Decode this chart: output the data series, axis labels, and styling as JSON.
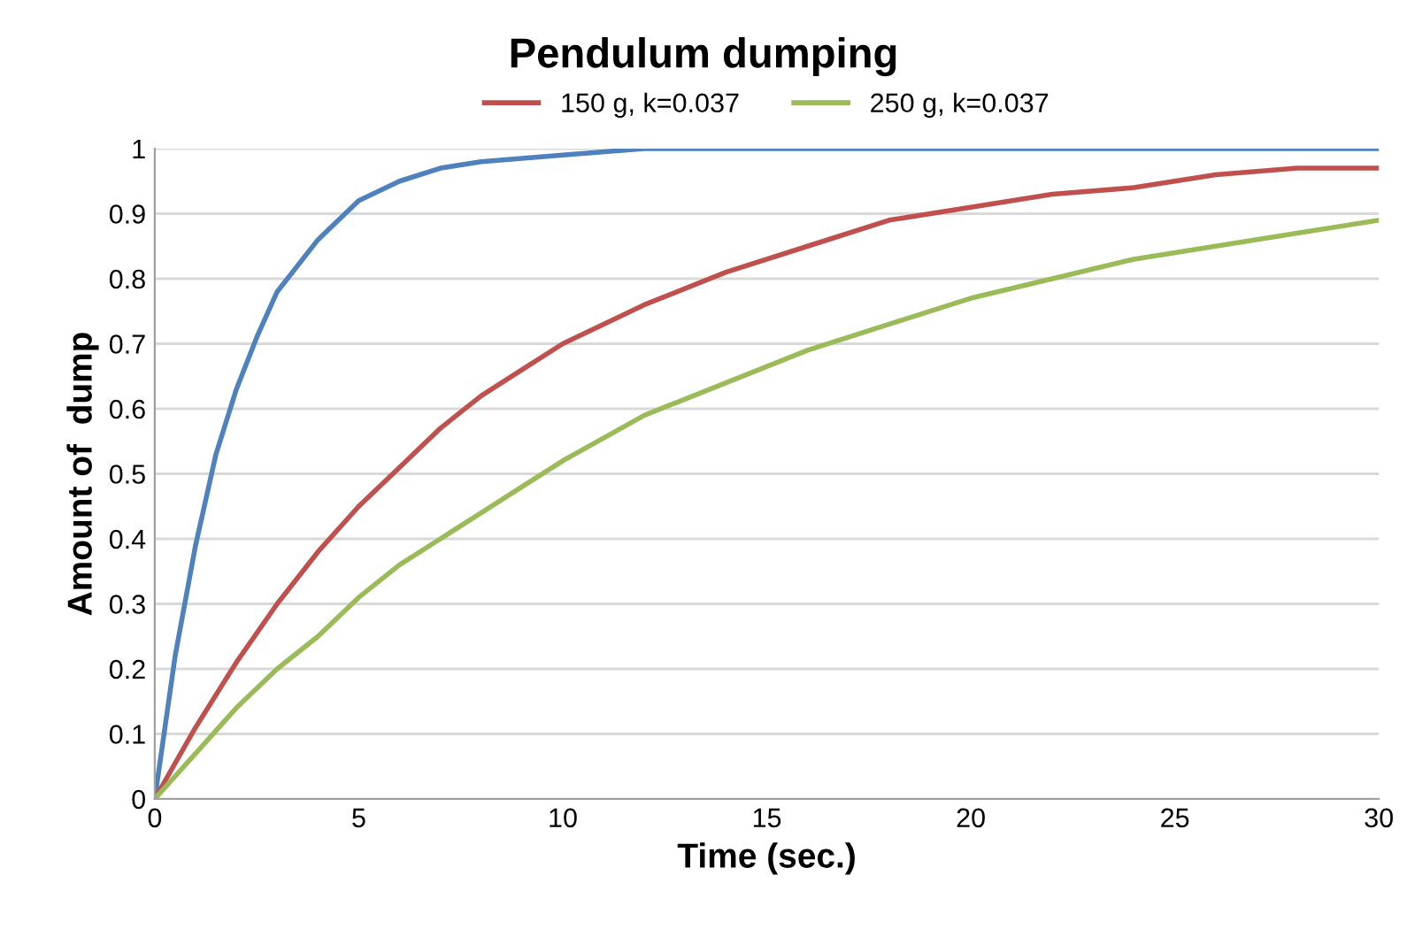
{
  "chart_data": {
    "type": "line",
    "title": "Pendulum dumping",
    "xlabel": "Time (sec.)",
    "ylabel": "Amount of  dump",
    "xlim": [
      0,
      30
    ],
    "xticks": [
      0,
      5,
      10,
      15,
      20,
      25,
      30
    ],
    "ylim": [
      0,
      1
    ],
    "yticks": [
      0,
      0.1,
      0.2,
      0.3,
      0.4,
      0.5,
      0.6,
      0.7,
      0.8,
      0.9,
      1
    ],
    "grid": "y",
    "legend": "top",
    "marker": "none",
    "line_style": "solid",
    "series": [
      {
        "color": "#4f81bd",
        "x": [
          0,
          0.5,
          1,
          1.5,
          2,
          2.5,
          3,
          4,
          5,
          6,
          7,
          8,
          10,
          12,
          15,
          20,
          25,
          30
        ],
        "values": [
          0,
          0.22,
          0.39,
          0.53,
          0.63,
          0.71,
          0.78,
          0.86,
          0.92,
          0.95,
          0.97,
          0.98,
          0.99,
          1,
          1,
          1,
          1,
          1
        ]
      },
      {
        "name": "150 g, k=0.037",
        "color": "#c0504d",
        "x": [
          0,
          1,
          2,
          3,
          4,
          5,
          6,
          7,
          8,
          9,
          10,
          12,
          14,
          16,
          18,
          20,
          22,
          24,
          26,
          28,
          30
        ],
        "values": [
          0,
          0.11,
          0.21,
          0.3,
          0.38,
          0.45,
          0.51,
          0.57,
          0.62,
          0.66,
          0.7,
          0.76,
          0.81,
          0.85,
          0.89,
          0.91,
          0.93,
          0.94,
          0.96,
          0.97,
          0.97
        ]
      },
      {
        "name": "250 g, k=0.037",
        "color": "#9bbb59",
        "x": [
          0,
          1,
          2,
          3,
          4,
          5,
          6,
          7,
          8,
          9,
          10,
          12,
          14,
          16,
          18,
          20,
          22,
          24,
          26,
          28,
          30
        ],
        "values": [
          0,
          0.07,
          0.14,
          0.2,
          0.25,
          0.31,
          0.36,
          0.4,
          0.44,
          0.48,
          0.52,
          0.59,
          0.64,
          0.69,
          0.73,
          0.77,
          0.8,
          0.83,
          0.85,
          0.87,
          0.89
        ]
      }
    ]
  }
}
